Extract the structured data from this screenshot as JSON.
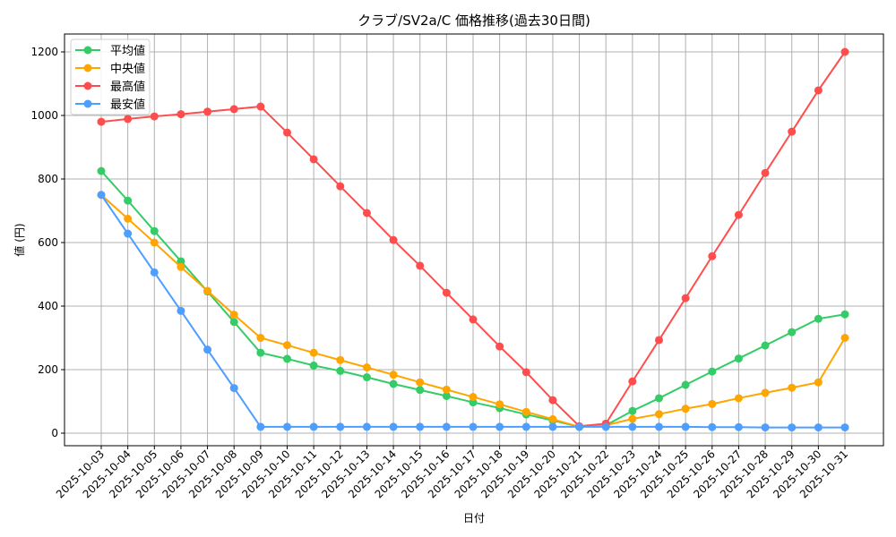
{
  "chart_data": {
    "type": "line",
    "title": "クラブ/SV2a/C 価格推移(過去30日間)",
    "xlabel": "日付",
    "ylabel": "値 (円)",
    "ylim": [
      -40,
      1250
    ],
    "yticks": [
      0,
      200,
      400,
      600,
      800,
      1000,
      1200
    ],
    "grid": true,
    "legend_position": "upper left",
    "x": [
      "2025-10-03",
      "2025-10-04",
      "2025-10-05",
      "2025-10-06",
      "2025-10-07",
      "2025-10-08",
      "2025-10-09",
      "2025-10-10",
      "2025-10-11",
      "2025-10-12",
      "2025-10-13",
      "2025-10-14",
      "2025-10-15",
      "2025-10-16",
      "2025-10-17",
      "2025-10-18",
      "2025-10-19",
      "2025-10-20",
      "2025-10-21",
      "2025-10-22",
      "2025-10-23",
      "2025-10-24",
      "2025-10-25",
      "2025-10-26",
      "2025-10-27",
      "2025-10-28",
      "2025-10-29",
      "2025-10-30",
      "2025-10-31"
    ],
    "series": [
      {
        "name": "平均値",
        "color": "#33cc66",
        "values": [
          825,
          732,
          636,
          541,
          446,
          350,
          253,
          234,
          213,
          196,
          176,
          155,
          136,
          117,
          97,
          79,
          59,
          40,
          20,
          25,
          70,
          110,
          152,
          194,
          235,
          276,
          318,
          360,
          374
        ]
      },
      {
        "name": "中央値",
        "color": "#ffa500",
        "values": [
          750,
          675,
          600,
          523,
          448,
          373,
          300,
          277,
          253,
          230,
          207,
          184,
          160,
          137,
          114,
          91,
          67,
          44,
          20,
          25,
          45,
          60,
          77,
          92,
          110,
          127,
          143,
          160,
          300
        ]
      },
      {
        "name": "最高値",
        "color": "#ff4d4d",
        "values": [
          980,
          989,
          997,
          1004,
          1012,
          1020,
          1028,
          946,
          862,
          777,
          693,
          608,
          527,
          442,
          358,
          273,
          192,
          104,
          22,
          30,
          163,
          293,
          425,
          557,
          687,
          819,
          949,
          1079,
          1200
        ]
      },
      {
        "name": "最安値",
        "color": "#4d9eff",
        "values": [
          750,
          628,
          506,
          385,
          263,
          142,
          20,
          20,
          20,
          20,
          20,
          20,
          20,
          20,
          20,
          20,
          20,
          20,
          20,
          20,
          20,
          20,
          20,
          19,
          19,
          18,
          18,
          18,
          18
        ]
      }
    ]
  }
}
